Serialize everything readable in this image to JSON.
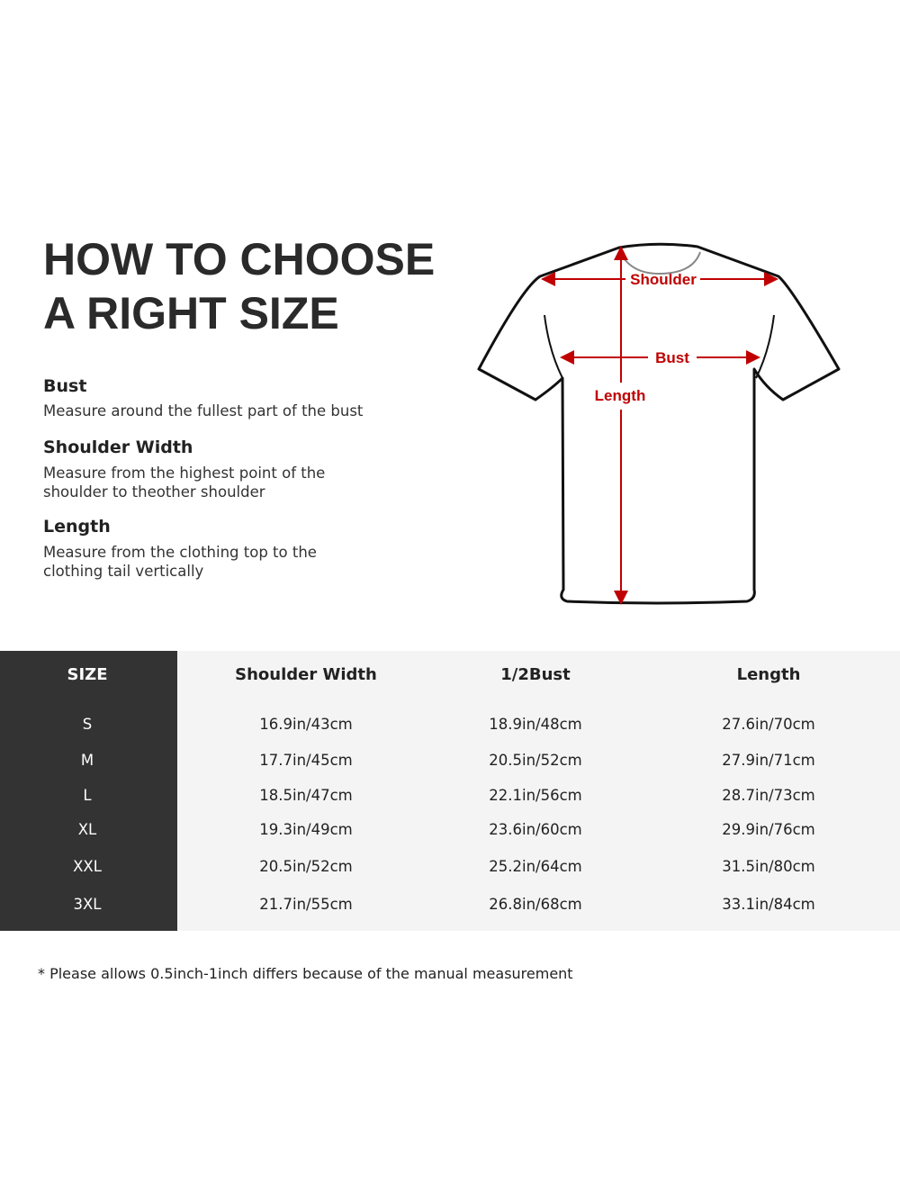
{
  "title": [
    "HOW TO CHOOSE",
    "A RIGHT SIZE"
  ],
  "guide": [
    {
      "heading": "Bust",
      "text": "Measure around the fullest part of the bust"
    },
    {
      "heading": "Shoulder Width",
      "text": "Measure from the highest point of the shoulder to theother shoulder"
    },
    {
      "heading": "Length",
      "text": "Measure from the clothing top to the clothing tail vertically"
    }
  ],
  "diagram": {
    "shoulder": "Shoulder",
    "bust": "Bust",
    "length": "Length",
    "accent": "#c00000"
  },
  "table": {
    "headers": [
      "SIZE",
      "Shoulder Width",
      "1/2Bust",
      "Length"
    ],
    "rows": [
      [
        "S",
        "16.9in/43cm",
        "18.9in/48cm",
        "27.6in/70cm"
      ],
      [
        "M",
        "17.7in/45cm",
        "20.5in/52cm",
        "27.9in/71cm"
      ],
      [
        "L",
        "18.5in/47cm",
        "22.1in/56cm",
        "28.7in/73cm"
      ],
      [
        "XL",
        "19.3in/49cm",
        "23.6in/60cm",
        "29.9in/76cm"
      ],
      [
        "XXL",
        "20.5in/52cm",
        "25.2in/64cm",
        "31.5in/80cm"
      ],
      [
        "3XL",
        "21.7in/55cm",
        "26.8in/68cm",
        "33.1in/84cm"
      ]
    ]
  },
  "note": "* Please allows 0.5inch-1inch differs because of the  manual measurement"
}
